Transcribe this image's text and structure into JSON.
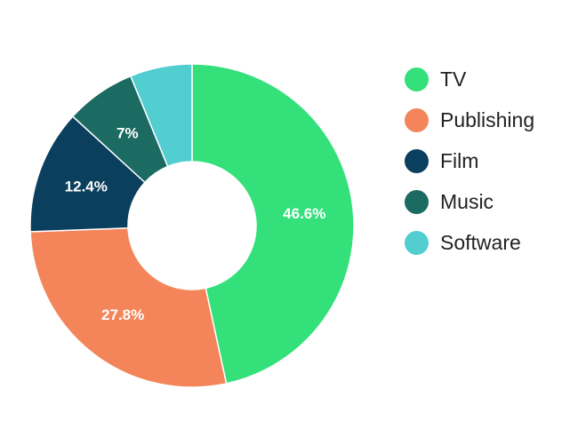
{
  "chart_data": {
    "type": "pie",
    "style": "donut",
    "title": "",
    "legend_position": "right",
    "categories": [
      "TV",
      "Publishing",
      "Film",
      "Music",
      "Software"
    ],
    "values": [
      46.6,
      27.8,
      12.4,
      7.0,
      6.2
    ],
    "data_labels": [
      "46.6%",
      "27.8%",
      "12.4%",
      "7%",
      ""
    ],
    "colors": [
      "#33e07a",
      "#f4855a",
      "#0b3f5e",
      "#1c6b62",
      "#52cdd0"
    ]
  }
}
